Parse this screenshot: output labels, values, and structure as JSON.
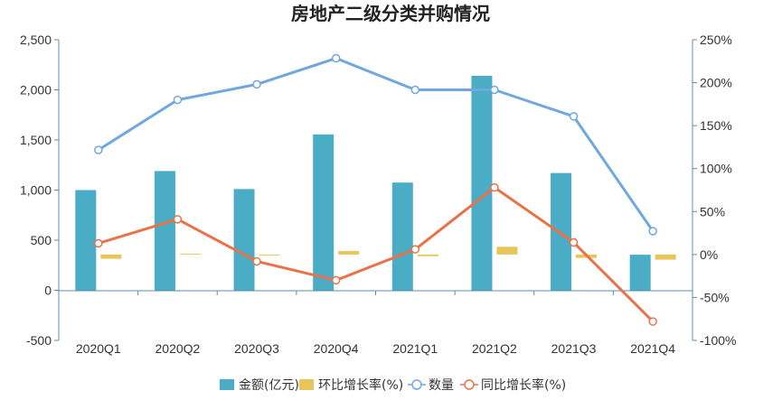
{
  "chart_data": {
    "type": "bar",
    "title": "房地产二级分类并购情况",
    "categories": [
      "2020Q1",
      "2020Q2",
      "2020Q3",
      "2020Q4",
      "2021Q1",
      "2021Q2",
      "2021Q3",
      "2021Q4"
    ],
    "series": [
      {
        "name": "金额(亿元)",
        "type": "bar",
        "axis": "left",
        "color": "#4bacc6",
        "values": [
          1000,
          1190,
          1010,
          1555,
          1075,
          2140,
          1170,
          355
        ]
      },
      {
        "name": "环比增长率(%)",
        "type": "bar",
        "axis": "right",
        "color": "#e8c55a",
        "values": [
          -5,
          1,
          -0.5,
          4,
          -2,
          9,
          -4,
          -6
        ]
      },
      {
        "name": "数量",
        "type": "line",
        "axis": "left",
        "color": "#6fa8dc",
        "values": [
          1400,
          1900,
          2055,
          2315,
          2000,
          2000,
          1735,
          590
        ]
      },
      {
        "name": "同比增长率(%)",
        "type": "line",
        "axis": "right",
        "color": "#e8734a",
        "values": [
          13,
          41,
          -8,
          -30,
          6,
          78,
          14,
          -78
        ]
      }
    ],
    "y_left": {
      "range": [
        -500,
        2500
      ],
      "ticks": [
        "-500",
        "0",
        "500",
        "1,000",
        "1,500",
        "2,000",
        "2,500"
      ]
    },
    "y_right": {
      "range": [
        -100,
        250
      ],
      "ticks": [
        "-100%",
        "-50%",
        "0%",
        "50%",
        "100%",
        "150%",
        "200%",
        "250%"
      ]
    },
    "legend_position": "bottom",
    "grid": false
  }
}
